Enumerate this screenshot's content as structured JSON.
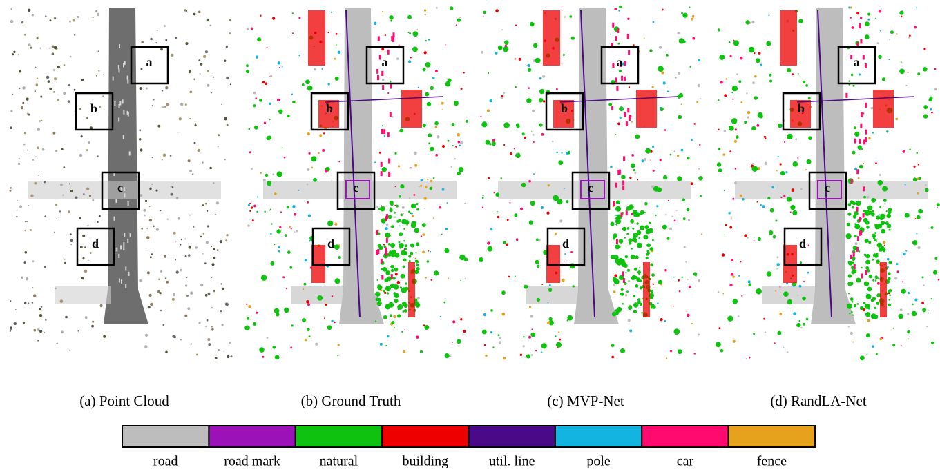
{
  "panels": [
    {
      "caption": "(a) Point Cloud",
      "style": "raw",
      "boxes": [
        "a",
        "b",
        "c",
        "d"
      ]
    },
    {
      "caption": "(b) Ground Truth",
      "style": "labeled",
      "boxes": [
        "a",
        "b",
        "c",
        "d"
      ]
    },
    {
      "caption": "(c) MVP-Net",
      "style": "labeled",
      "boxes": [
        "a",
        "b",
        "c",
        "d"
      ]
    },
    {
      "caption": "(d) RandLA-Net",
      "style": "labeled",
      "boxes": [
        "a",
        "b",
        "c",
        "d"
      ]
    }
  ],
  "legend": [
    {
      "label": "road",
      "color": "#bdbdbd"
    },
    {
      "label": "road mark",
      "color": "#9b12b8"
    },
    {
      "label": "natural",
      "color": "#0fc20f"
    },
    {
      "label": "building",
      "color": "#ee0000"
    },
    {
      "label": "util. line",
      "color": "#4a0a87"
    },
    {
      "label": "pole",
      "color": "#14b4e0"
    },
    {
      "label": "car",
      "color": "#ff0a6e"
    },
    {
      "label": "fence",
      "color": "#e6a21c"
    }
  ]
}
